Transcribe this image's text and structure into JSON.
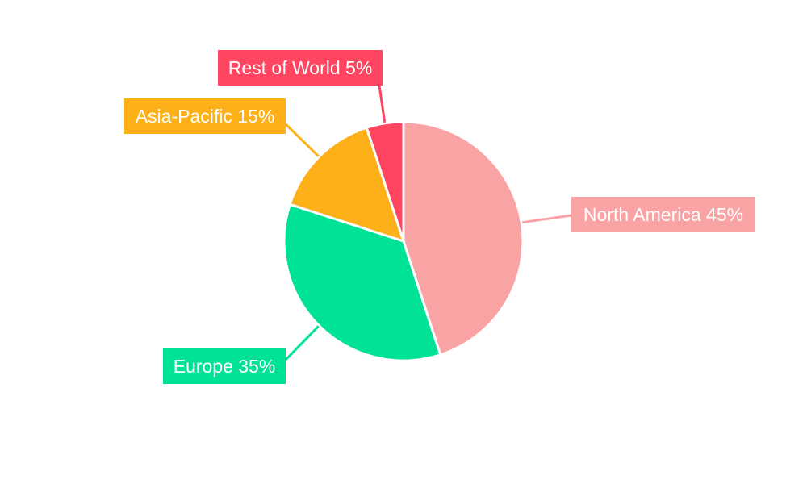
{
  "chart_data": {
    "type": "pie",
    "title": "",
    "start_angle": "top",
    "direction": "clockwise",
    "slices": [
      {
        "label": "North America",
        "value": 45,
        "display": "North America 45%",
        "color": "#F9A3A4"
      },
      {
        "label": "Europe",
        "value": 35,
        "display": "Europe 35%",
        "color": "#00E396"
      },
      {
        "label": "Asia-Pacific",
        "value": 15,
        "display": "Asia-Pacific 15%",
        "color": "#FEB019"
      },
      {
        "label": "Rest of World",
        "value": 5,
        "display": "Rest of World 5%",
        "color": "#FF4560"
      }
    ],
    "legend": "none",
    "data_labels": "outside with leader lines"
  }
}
